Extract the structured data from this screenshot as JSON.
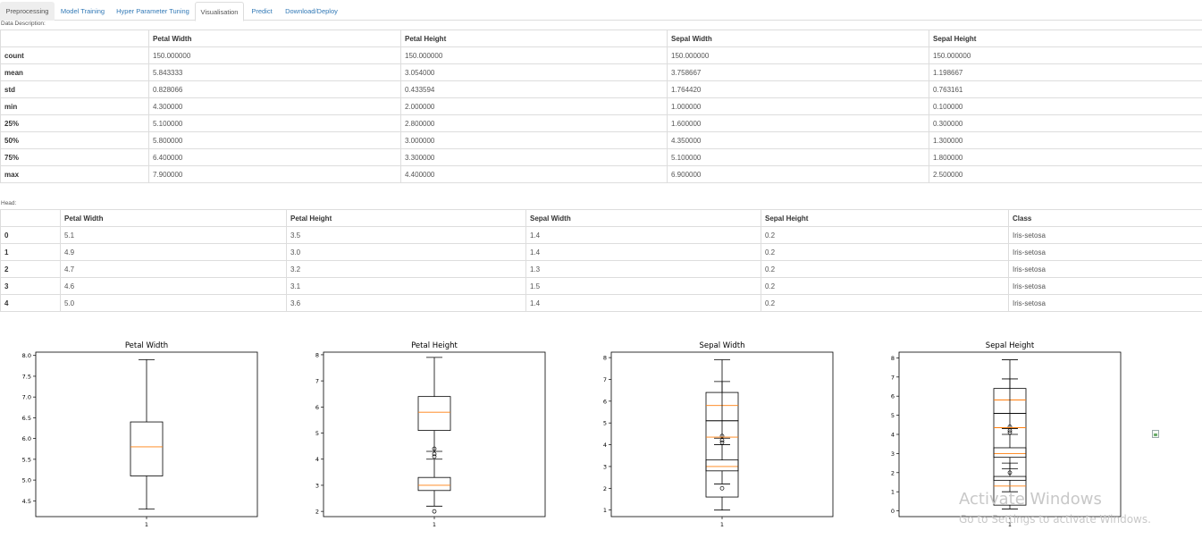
{
  "tabs": [
    {
      "label": "Preprocessing",
      "active": false
    },
    {
      "label": "Model Training",
      "active": false
    },
    {
      "label": "Hyper Parameter Tuning",
      "active": false
    },
    {
      "label": "Visualisation",
      "active": true
    },
    {
      "label": "Predict",
      "active": false
    },
    {
      "label": "Download/Deploy",
      "active": false
    }
  ],
  "description": {
    "label": "Data Description:",
    "columns": [
      "",
      "Petal Width",
      "Petal Height",
      "Sepal Width",
      "Sepal Height"
    ],
    "rows": [
      [
        "count",
        "150.000000",
        "150.000000",
        "150.000000",
        "150.000000"
      ],
      [
        "mean",
        "5.843333",
        "3.054000",
        "3.758667",
        "1.198667"
      ],
      [
        "std",
        "0.828066",
        "0.433594",
        "1.764420",
        "0.763161"
      ],
      [
        "min",
        "4.300000",
        "2.000000",
        "1.000000",
        "0.100000"
      ],
      [
        "25%",
        "5.100000",
        "2.800000",
        "1.600000",
        "0.300000"
      ],
      [
        "50%",
        "5.800000",
        "3.000000",
        "4.350000",
        "1.300000"
      ],
      [
        "75%",
        "6.400000",
        "3.300000",
        "5.100000",
        "1.800000"
      ],
      [
        "max",
        "7.900000",
        "4.400000",
        "6.900000",
        "2.500000"
      ]
    ]
  },
  "head": {
    "label": "Head:",
    "columns": [
      "",
      "Petal Width",
      "Petal Height",
      "Sepal Width",
      "Sepal Height",
      "Class"
    ],
    "rows": [
      [
        "0",
        "5.1",
        "3.5",
        "1.4",
        "0.2",
        "Iris-setosa"
      ],
      [
        "1",
        "4.9",
        "3.0",
        "1.4",
        "0.2",
        "Iris-setosa"
      ],
      [
        "2",
        "4.7",
        "3.2",
        "1.3",
        "0.2",
        "Iris-setosa"
      ],
      [
        "3",
        "4.6",
        "3.1",
        "1.5",
        "0.2",
        "Iris-setosa"
      ],
      [
        "4",
        "5.0",
        "3.6",
        "1.4",
        "0.2",
        "Iris-setosa"
      ]
    ]
  },
  "colors": {
    "median": "#ff7f0e",
    "box": "#000000",
    "tab_link": "#337ab7",
    "border": "#dddddd"
  },
  "chart_data": [
    {
      "type": "box",
      "title": "Petal Width",
      "categories": [
        "1"
      ],
      "ylim": [
        4.3,
        7.9
      ],
      "yticks": [
        "4.5",
        "5.0",
        "5.5",
        "6.0",
        "6.5",
        "7.0",
        "7.5",
        "8.0"
      ],
      "ytick_values": [
        4.5,
        5.0,
        5.5,
        6.0,
        6.5,
        7.0,
        7.5,
        8.0
      ],
      "ydomain": [
        4.12,
        8.08
      ],
      "boxes": [
        {
          "whisker_low": 4.3,
          "q1": 5.1,
          "median": 5.8,
          "q3": 6.4,
          "whisker_high": 7.9,
          "outliers": []
        }
      ]
    },
    {
      "type": "box",
      "title": "Petal Height",
      "categories": [
        "1"
      ],
      "yticks": [
        "2",
        "3",
        "4",
        "5",
        "6",
        "7",
        "8"
      ],
      "ytick_values": [
        2,
        3,
        4,
        5,
        6,
        7,
        8
      ],
      "ydomain": [
        1.8,
        8.1
      ],
      "boxes": [
        {
          "whisker_low": 4.3,
          "q1": 5.1,
          "median": 5.8,
          "q3": 6.4,
          "whisker_high": 7.9,
          "outliers": [
            4.4,
            4.2,
            4.1
          ]
        },
        {
          "whisker_low": 2.2,
          "q1": 2.8,
          "median": 3.0,
          "q3": 3.3,
          "whisker_high": 4.0,
          "outliers": [
            2.0
          ]
        }
      ]
    },
    {
      "type": "box",
      "title": "Sepal Width",
      "categories": [
        "1"
      ],
      "yticks": [
        "1",
        "2",
        "3",
        "4",
        "5",
        "6",
        "7",
        "8"
      ],
      "ytick_values": [
        1,
        2,
        3,
        4,
        5,
        6,
        7,
        8
      ],
      "ydomain": [
        0.7,
        8.25
      ],
      "boxes": [
        {
          "whisker_low": 4.3,
          "q1": 5.1,
          "median": 5.8,
          "q3": 6.4,
          "whisker_high": 7.9,
          "outliers": []
        },
        {
          "whisker_low": 2.2,
          "q1": 2.8,
          "median": 3.0,
          "q3": 3.3,
          "whisker_high": 4.0,
          "outliers": [
            4.4,
            4.2,
            4.1,
            2.0
          ]
        },
        {
          "whisker_low": 1.0,
          "q1": 1.6,
          "median": 4.35,
          "q3": 5.1,
          "whisker_high": 6.9,
          "outliers": []
        }
      ]
    },
    {
      "type": "box",
      "title": "Sepal Height",
      "categories": [
        "1"
      ],
      "yticks": [
        "0",
        "1",
        "2",
        "3",
        "4",
        "5",
        "6",
        "7",
        "8"
      ],
      "ytick_values": [
        0,
        1,
        2,
        3,
        4,
        5,
        6,
        7,
        8
      ],
      "ydomain": [
        -0.3,
        8.3
      ],
      "boxes": [
        {
          "whisker_low": 4.3,
          "q1": 5.1,
          "median": 5.8,
          "q3": 6.4,
          "whisker_high": 7.9,
          "outliers": []
        },
        {
          "whisker_low": 2.2,
          "q1": 2.8,
          "median": 3.0,
          "q3": 3.3,
          "whisker_high": 4.0,
          "outliers": [
            4.4,
            4.2,
            4.1,
            2.0
          ]
        },
        {
          "whisker_low": 1.0,
          "q1": 1.6,
          "median": 4.35,
          "q3": 5.1,
          "whisker_high": 6.9,
          "outliers": []
        },
        {
          "whisker_low": 0.1,
          "q1": 0.3,
          "median": 1.3,
          "q3": 1.8,
          "whisker_high": 2.5,
          "outliers": []
        }
      ]
    }
  ],
  "broken_image": {
    "icon": "broken-image-icon"
  },
  "watermark": {
    "title": "Activate Windows",
    "subtitle": "Go to Settings to activate Windows."
  }
}
